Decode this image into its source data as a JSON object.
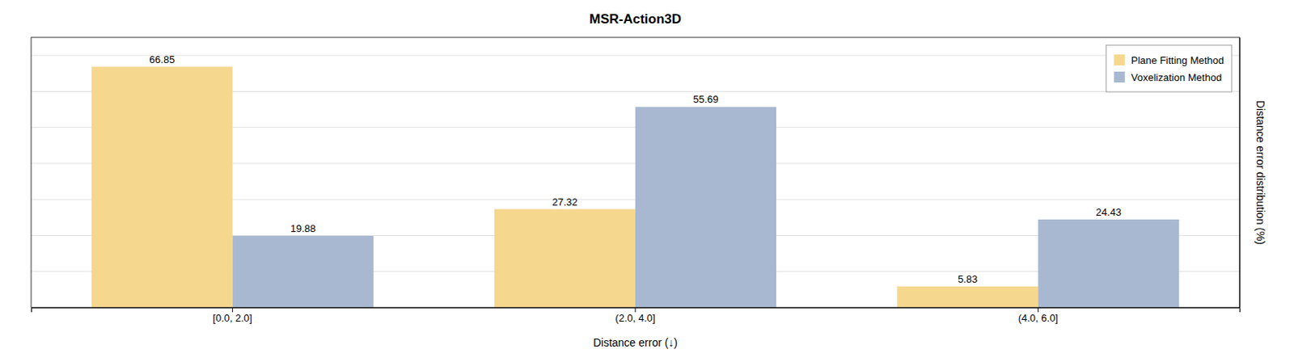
{
  "chart_data": {
    "type": "bar",
    "title": "MSR-Action3D",
    "xlabel": "Distance error (↓)",
    "ylabel": "Distance error distribution (%)",
    "categories": [
      "[0.0, 2.0]",
      "(2.0, 4.0]",
      "(4.0, 6.0]"
    ],
    "series": [
      {
        "name": "Plane Fitting Method",
        "color": "#F5D78E",
        "values": [
          66.85,
          27.32,
          5.83
        ]
      },
      {
        "name": "Voxelization Method",
        "color": "#A8B8D0",
        "values": [
          19.88,
          55.69,
          24.43
        ]
      }
    ],
    "ylim": [
      0,
      75
    ],
    "yticks": [
      0,
      10,
      20,
      30,
      40,
      50,
      60,
      70
    ],
    "grid": true,
    "legend": "upper right",
    "data_labels": true,
    "tick_labels": "x"
  }
}
